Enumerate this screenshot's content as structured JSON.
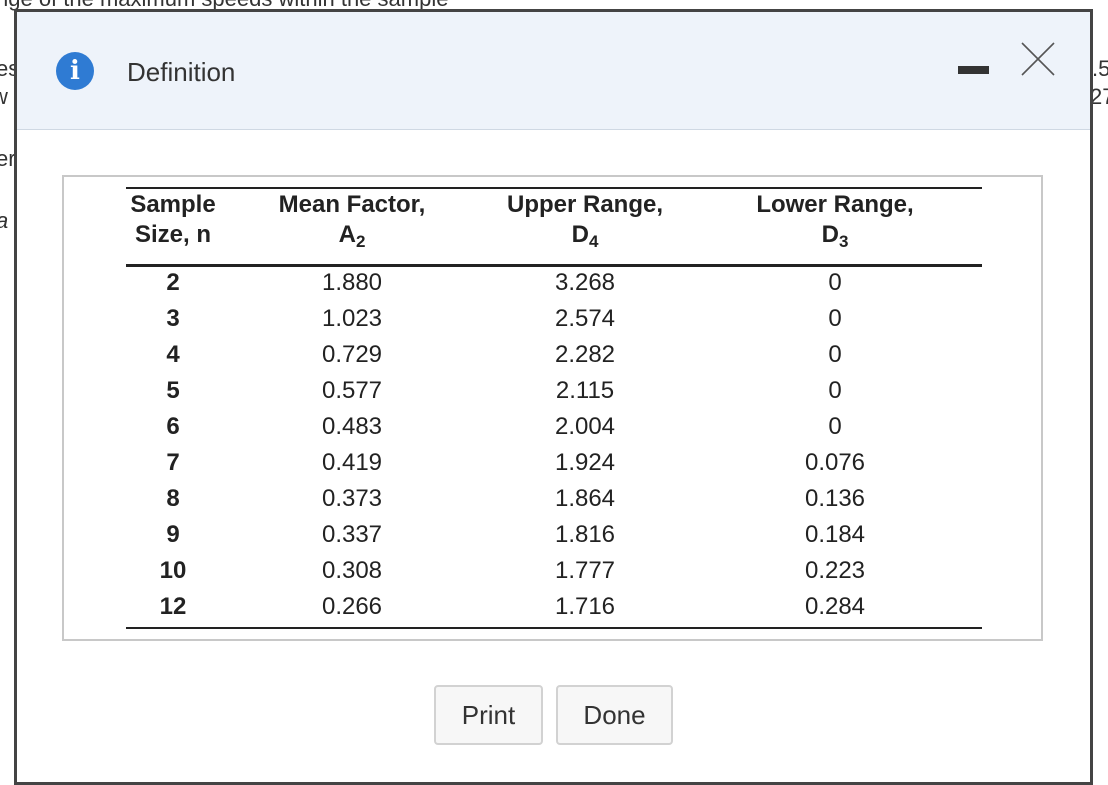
{
  "background_text": [
    "nge of the maximum speeds within the sample",
    "es",
    "w",
    "er",
    "a",
    ".5",
    "27"
  ],
  "dialog": {
    "title": "Definition",
    "table": {
      "headers": [
        {
          "line1": "Sample",
          "line2": "Size, n"
        },
        {
          "line1": "Mean Factor,",
          "symbol": "A",
          "sub": "2"
        },
        {
          "line1": "Upper Range,",
          "symbol": "D",
          "sub": "4"
        },
        {
          "line1": "Lower Range,",
          "symbol": "D",
          "sub": "3"
        }
      ],
      "rows": [
        [
          "2",
          "1.880",
          "3.268",
          "0"
        ],
        [
          "3",
          "1.023",
          "2.574",
          "0"
        ],
        [
          "4",
          "0.729",
          "2.282",
          "0"
        ],
        [
          "5",
          "0.577",
          "2.115",
          "0"
        ],
        [
          "6",
          "0.483",
          "2.004",
          "0"
        ],
        [
          "7",
          "0.419",
          "1.924",
          "0.076"
        ],
        [
          "8",
          "0.373",
          "1.864",
          "0.136"
        ],
        [
          "9",
          "0.337",
          "1.816",
          "0.184"
        ],
        [
          "10",
          "0.308",
          "1.777",
          "0.223"
        ],
        [
          "12",
          "0.266",
          "1.716",
          "0.284"
        ]
      ]
    },
    "buttons": [
      "Print",
      "Done"
    ]
  }
}
